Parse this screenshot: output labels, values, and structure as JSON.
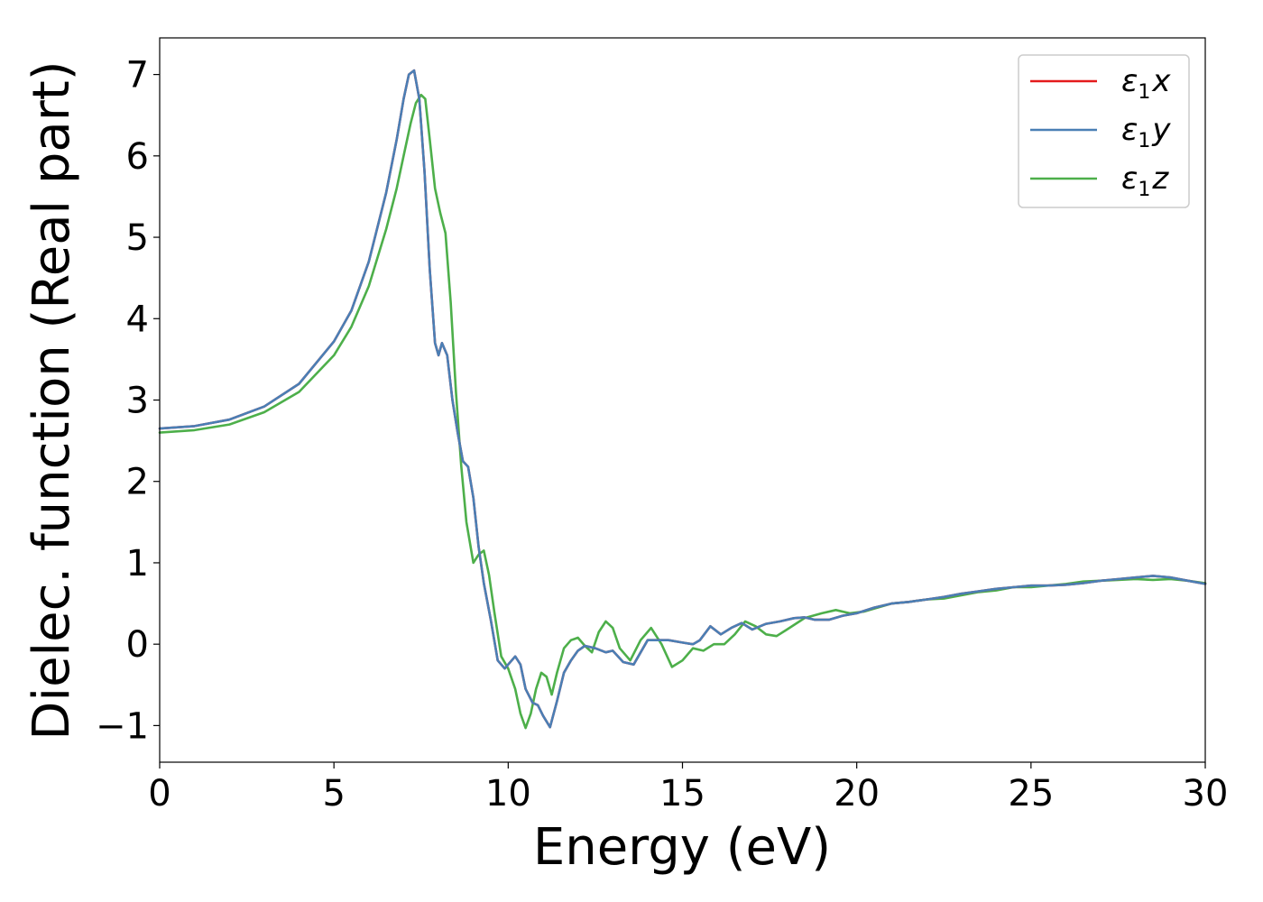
{
  "chart_data": {
    "type": "line",
    "title": "",
    "xlabel": "Energy (eV)",
    "ylabel": "Dielec. function (Real part)",
    "xlim": [
      0,
      30
    ],
    "ylim": [
      -1.45,
      7.45
    ],
    "xticks": [
      0,
      5,
      10,
      15,
      20,
      25,
      30
    ],
    "yticks": [
      -1,
      0,
      1,
      2,
      3,
      4,
      5,
      6,
      7
    ],
    "ytick_labels": [
      "−1",
      "0",
      "1",
      "2",
      "3",
      "4",
      "5",
      "6",
      "7"
    ],
    "grid": false,
    "legend_position": "top-right",
    "series": [
      {
        "name": "ε",
        "subscript": "1",
        "suffix": "x",
        "color": "#e41a1c",
        "x": [
          0,
          1,
          2,
          3,
          4,
          5,
          5.5,
          6,
          6.5,
          6.8,
          7.0,
          7.15,
          7.3,
          7.45,
          7.6,
          7.75,
          7.9,
          8.0,
          8.1,
          8.25,
          8.4,
          8.55,
          8.7,
          8.85,
          9.0,
          9.15,
          9.3,
          9.5,
          9.7,
          9.9,
          10.0,
          10.2,
          10.35,
          10.5,
          10.7,
          10.85,
          11.0,
          11.2,
          11.4,
          11.6,
          11.8,
          12.0,
          12.2,
          12.5,
          12.8,
          13.0,
          13.3,
          13.6,
          14.0,
          14.3,
          14.6,
          15.0,
          15.3,
          15.5,
          15.8,
          16.1,
          16.4,
          16.7,
          17.0,
          17.4,
          17.8,
          18.2,
          18.5,
          18.8,
          19.2,
          19.6,
          20.0,
          20.5,
          21.0,
          21.5,
          22.0,
          22.5,
          23.0,
          23.5,
          24.0,
          24.5,
          25.0,
          25.5,
          26.0,
          26.5,
          27.0,
          27.5,
          28.0,
          28.5,
          29.0,
          29.5,
          30.0
        ],
        "y": [
          2.65,
          2.68,
          2.76,
          2.92,
          3.2,
          3.72,
          4.1,
          4.7,
          5.55,
          6.2,
          6.7,
          7.0,
          7.05,
          6.7,
          5.8,
          4.6,
          3.7,
          3.55,
          3.7,
          3.55,
          3.0,
          2.6,
          2.25,
          2.18,
          1.8,
          1.2,
          0.75,
          0.3,
          -0.2,
          -0.3,
          -0.25,
          -0.15,
          -0.25,
          -0.55,
          -0.72,
          -0.75,
          -0.88,
          -1.02,
          -0.7,
          -0.35,
          -0.2,
          -0.08,
          -0.02,
          -0.05,
          -0.1,
          -0.08,
          -0.22,
          -0.25,
          0.05,
          0.05,
          0.05,
          0.02,
          0.0,
          0.05,
          0.22,
          0.12,
          0.2,
          0.26,
          0.18,
          0.25,
          0.28,
          0.32,
          0.33,
          0.3,
          0.3,
          0.35,
          0.38,
          0.45,
          0.5,
          0.52,
          0.55,
          0.58,
          0.62,
          0.65,
          0.68,
          0.7,
          0.72,
          0.72,
          0.73,
          0.75,
          0.78,
          0.8,
          0.82,
          0.84,
          0.82,
          0.78,
          0.74
        ]
      },
      {
        "name": "ε",
        "subscript": "1",
        "suffix": "y",
        "color": "#4a7fb5",
        "x": [
          0,
          1,
          2,
          3,
          4,
          5,
          5.5,
          6,
          6.5,
          6.8,
          7.0,
          7.15,
          7.3,
          7.45,
          7.6,
          7.75,
          7.9,
          8.0,
          8.1,
          8.25,
          8.4,
          8.55,
          8.7,
          8.85,
          9.0,
          9.15,
          9.3,
          9.5,
          9.7,
          9.9,
          10.0,
          10.2,
          10.35,
          10.5,
          10.7,
          10.85,
          11.0,
          11.2,
          11.4,
          11.6,
          11.8,
          12.0,
          12.2,
          12.5,
          12.8,
          13.0,
          13.3,
          13.6,
          14.0,
          14.3,
          14.6,
          15.0,
          15.3,
          15.5,
          15.8,
          16.1,
          16.4,
          16.7,
          17.0,
          17.4,
          17.8,
          18.2,
          18.5,
          18.8,
          19.2,
          19.6,
          20.0,
          20.5,
          21.0,
          21.5,
          22.0,
          22.5,
          23.0,
          23.5,
          24.0,
          24.5,
          25.0,
          25.5,
          26.0,
          26.5,
          27.0,
          27.5,
          28.0,
          28.5,
          29.0,
          29.5,
          30.0
        ],
        "y": [
          2.65,
          2.68,
          2.76,
          2.92,
          3.2,
          3.72,
          4.1,
          4.7,
          5.55,
          6.2,
          6.7,
          7.0,
          7.05,
          6.7,
          5.8,
          4.6,
          3.7,
          3.55,
          3.7,
          3.55,
          3.0,
          2.6,
          2.25,
          2.18,
          1.8,
          1.2,
          0.75,
          0.3,
          -0.2,
          -0.3,
          -0.25,
          -0.15,
          -0.25,
          -0.55,
          -0.72,
          -0.75,
          -0.88,
          -1.02,
          -0.7,
          -0.35,
          -0.2,
          -0.08,
          -0.02,
          -0.05,
          -0.1,
          -0.08,
          -0.22,
          -0.25,
          0.05,
          0.05,
          0.05,
          0.02,
          0.0,
          0.05,
          0.22,
          0.12,
          0.2,
          0.26,
          0.18,
          0.25,
          0.28,
          0.32,
          0.33,
          0.3,
          0.3,
          0.35,
          0.38,
          0.45,
          0.5,
          0.52,
          0.55,
          0.58,
          0.62,
          0.65,
          0.68,
          0.7,
          0.72,
          0.72,
          0.73,
          0.75,
          0.78,
          0.8,
          0.82,
          0.84,
          0.82,
          0.78,
          0.74
        ]
      },
      {
        "name": "ε",
        "subscript": "1",
        "suffix": "z",
        "color": "#4daf4a",
        "x": [
          0,
          1,
          2,
          3,
          4,
          5,
          5.5,
          6,
          6.5,
          6.8,
          7.0,
          7.2,
          7.35,
          7.5,
          7.62,
          7.75,
          7.9,
          8.05,
          8.2,
          8.35,
          8.5,
          8.65,
          8.8,
          9.0,
          9.15,
          9.3,
          9.45,
          9.6,
          9.8,
          10.0,
          10.2,
          10.35,
          10.5,
          10.65,
          10.8,
          10.95,
          11.1,
          11.25,
          11.4,
          11.6,
          11.8,
          12.0,
          12.2,
          12.4,
          12.6,
          12.8,
          13.0,
          13.2,
          13.5,
          13.8,
          14.1,
          14.4,
          14.7,
          15.0,
          15.3,
          15.6,
          15.9,
          16.2,
          16.5,
          16.8,
          17.1,
          17.4,
          17.7,
          18.0,
          18.5,
          19.0,
          19.4,
          19.8,
          20.2,
          20.6,
          21.0,
          21.5,
          22.0,
          22.5,
          23.0,
          23.5,
          24.0,
          24.5,
          25.0,
          25.5,
          26.0,
          26.5,
          27.0,
          27.5,
          28.0,
          28.5,
          29.0,
          29.5,
          30.0
        ],
        "y": [
          2.6,
          2.63,
          2.7,
          2.85,
          3.1,
          3.55,
          3.9,
          4.4,
          5.1,
          5.6,
          6.0,
          6.4,
          6.65,
          6.75,
          6.7,
          6.2,
          5.6,
          5.3,
          5.05,
          4.2,
          3.1,
          2.2,
          1.5,
          1.0,
          1.1,
          1.15,
          0.85,
          0.4,
          -0.15,
          -0.3,
          -0.55,
          -0.85,
          -1.03,
          -0.85,
          -0.55,
          -0.35,
          -0.4,
          -0.62,
          -0.35,
          -0.05,
          0.05,
          0.08,
          -0.02,
          -0.1,
          0.15,
          0.28,
          0.2,
          -0.05,
          -0.2,
          0.05,
          0.2,
          0.0,
          -0.28,
          -0.2,
          -0.05,
          -0.08,
          0.0,
          0.0,
          0.12,
          0.28,
          0.22,
          0.12,
          0.1,
          0.18,
          0.32,
          0.38,
          0.42,
          0.38,
          0.4,
          0.45,
          0.5,
          0.52,
          0.55,
          0.56,
          0.6,
          0.64,
          0.66,
          0.7,
          0.7,
          0.72,
          0.74,
          0.77,
          0.78,
          0.79,
          0.8,
          0.79,
          0.8,
          0.78,
          0.75
        ]
      }
    ]
  }
}
